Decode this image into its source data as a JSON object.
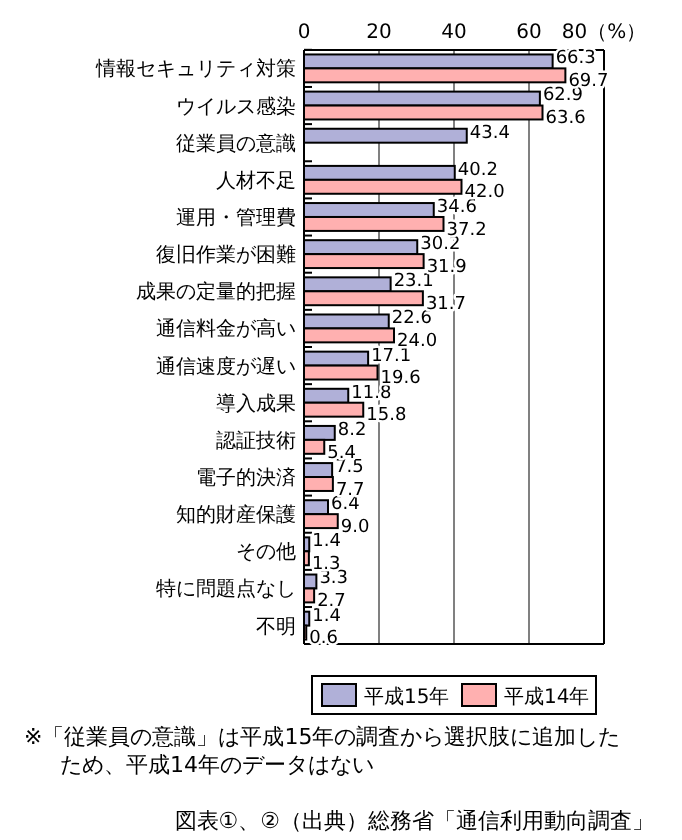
{
  "chart_data": {
    "type": "bar",
    "orientation": "horizontal",
    "categories": [
      "情報セキュリティ対策",
      "ウイルス感染",
      "従業員の意識",
      "人材不足",
      "運用・管理費",
      "復旧作業が困難",
      "成果の定量的把握",
      "通信料金が高い",
      "通信速度が遅い",
      "導入成果",
      "認証技術",
      "電子的決済",
      "知的財産保護",
      "その他",
      "特に問題点なし",
      "不明"
    ],
    "series": [
      {
        "name": "平成15年",
        "color": "#b0b0d8",
        "values": [
          66.3,
          62.9,
          43.4,
          40.2,
          34.6,
          30.2,
          23.1,
          22.6,
          17.1,
          11.8,
          8.2,
          7.5,
          6.4,
          1.4,
          3.3,
          1.4
        ],
        "value_labels": [
          "66.3",
          "62.9",
          "43.4",
          "40.2",
          "34.6",
          "30.2",
          "23.1",
          "22.6",
          "17.1",
          "11.8",
          "8.2",
          "7.5",
          "6.4",
          "1.4",
          "3.3",
          "1.4"
        ]
      },
      {
        "name": "平成14年",
        "color": "#ffb0b0",
        "values": [
          69.7,
          63.6,
          null,
          42.0,
          37.2,
          31.9,
          31.7,
          24.0,
          19.6,
          15.8,
          5.4,
          7.7,
          9.0,
          1.3,
          2.7,
          0.6
        ],
        "value_labels": [
          "69.7",
          "63.6",
          null,
          "42.0",
          "37.2",
          "31.9",
          "31.7",
          "24.0",
          "19.6",
          "15.8",
          "5.4",
          "7.7",
          "9.0",
          "1.3",
          "2.7",
          "0.6"
        ]
      }
    ],
    "xlim": [
      0,
      80
    ],
    "xticks": [
      0,
      20,
      40,
      60,
      {
        "value": 80,
        "label": "80（%）"
      }
    ],
    "grid": "x",
    "legend": "bottom",
    "data_labels": true,
    "annotations": [
      "※「従業員の意識」は平成15年の調査から選択肢に追加したため、平成14年のデータはない",
      "図表①、②（出典）総務省「通信利用動向調査」"
    ]
  }
}
